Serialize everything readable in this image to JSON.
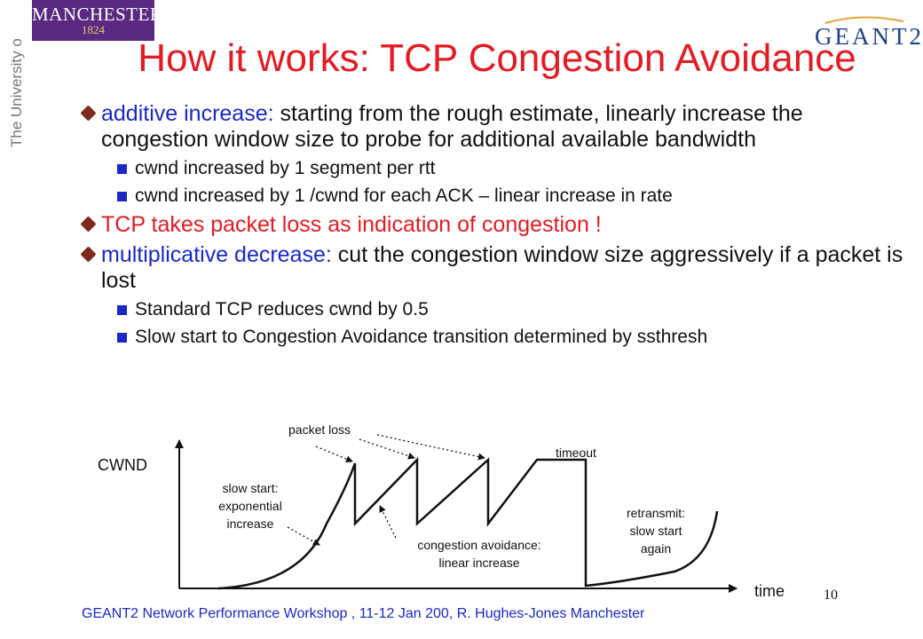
{
  "logos": {
    "manchester_name": "MANCHESTER",
    "manchester_year": "1824",
    "university_vertical": "The University of Manchester",
    "geant": "GEANT2",
    "colors": {
      "manchester_purple": "#5a2a82",
      "geant_blue": "#1a3f8c"
    }
  },
  "title": "How it works: TCP Congestion Avoidance",
  "bullets": [
    {
      "lead": "additive increase:",
      "text": " starting from the rough estimate, linearly increase the congestion window size to probe for additional available bandwidth",
      "subs": [
        "cwnd increased by 1 segment per rtt",
        "cwnd increased by 1 /cwnd for each ACK – linear increase in rate"
      ]
    },
    {
      "red_text": "TCP takes packet loss as indication of congestion !"
    },
    {
      "lead": "multiplicative decrease:",
      "text": " cut the congestion window size aggressively if a packet is lost",
      "subs": [
        "Standard TCP reduces cwnd by 0.5",
        "Slow start to Congestion Avoidance transition determined by ssthresh"
      ]
    }
  ],
  "diagram": {
    "y_label": "CWND",
    "x_label": "time",
    "packet_loss": "packet loss",
    "timeout": "timeout",
    "slow_start": [
      "slow start:",
      "exponential",
      "increase"
    ],
    "congestion_avoidance": [
      "congestion avoidance:",
      "linear increase"
    ],
    "retransmit": [
      "retransmit:",
      "slow start",
      "again"
    ]
  },
  "footer": "GEANT2 Network Performance Workshop , 11-12 Jan 200,  R. Hughes-Jones  Manchester",
  "page_number": "10"
}
